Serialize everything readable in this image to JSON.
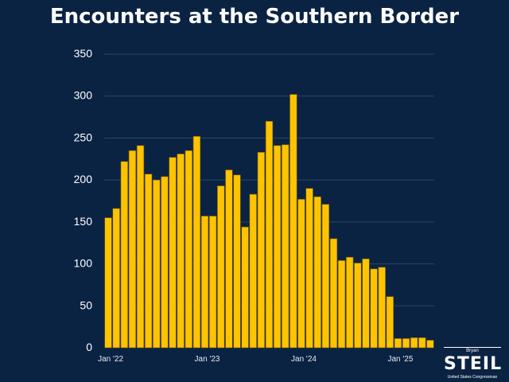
{
  "chart_data": {
    "type": "bar",
    "title": "Encounters at the Southern Border",
    "xlabel": "",
    "ylabel": "",
    "ylim": [
      0,
      350
    ],
    "yticks": [
      0,
      50,
      100,
      150,
      200,
      250,
      300,
      350
    ],
    "xtick_labels": [
      {
        "label": "Jan '22",
        "index": 0
      },
      {
        "label": "Jan '23",
        "index": 12
      },
      {
        "label": "Jan '24",
        "index": 24
      },
      {
        "label": "Jan '25",
        "index": 36
      }
    ],
    "grid": true,
    "bar_color": "#ffc300",
    "categories": [
      "Jan 2022",
      "Feb 2022",
      "Mar 2022",
      "Apr 2022",
      "May 2022",
      "Jun 2022",
      "Jul 2022",
      "Aug 2022",
      "Sep 2022",
      "Oct 2022",
      "Nov 2022",
      "Dec 2022",
      "Jan 2023",
      "Feb 2023",
      "Mar 2023",
      "Apr 2023",
      "May 2023",
      "Jun 2023",
      "Jul 2023",
      "Aug 2023",
      "Sep 2023",
      "Oct 2023",
      "Nov 2023",
      "Dec 2023",
      "Jan 2024",
      "Feb 2024",
      "Mar 2024",
      "Apr 2024",
      "May 2024",
      "Jun 2024",
      "Jul 2024",
      "Aug 2024",
      "Sep 2024",
      "Oct 2024",
      "Nov 2024",
      "Dec 2024",
      "Jan 2025",
      "Feb 2025",
      "Mar 2025",
      "Apr 2025",
      "May 2025"
    ],
    "values": [
      155,
      166,
      222,
      235,
      241,
      207,
      200,
      204,
      227,
      231,
      235,
      252,
      157,
      157,
      193,
      212,
      206,
      144,
      183,
      233,
      270,
      241,
      242,
      302,
      177,
      190,
      180,
      171,
      130,
      104,
      108,
      101,
      106,
      94,
      96,
      61,
      11,
      11,
      12,
      12,
      9
    ]
  },
  "logo": {
    "top": "Bryan",
    "name": "STEIL",
    "sub": "United States Congressman"
  }
}
